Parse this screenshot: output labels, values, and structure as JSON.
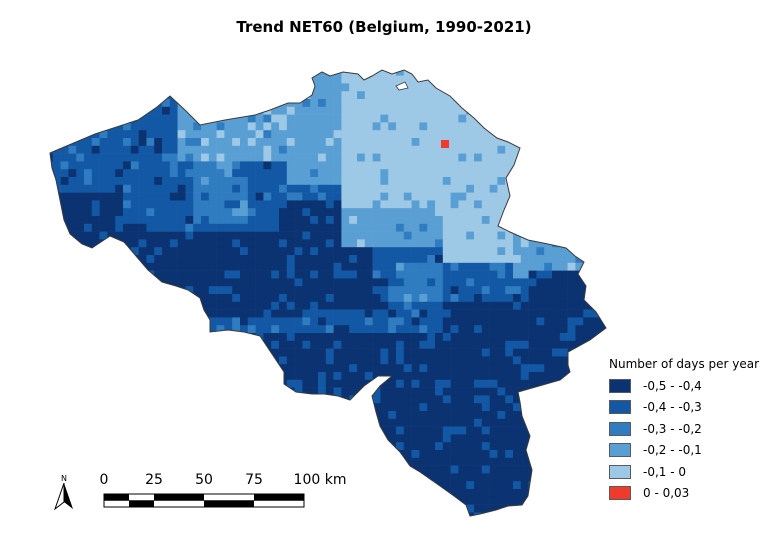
{
  "title": "Trend NET60 (Belgium, 1990-2021)",
  "legend": {
    "title": "Number of days per year",
    "items": [
      {
        "label": "-0,5 - -0,4",
        "color": "#0b3271"
      },
      {
        "label": "-0,4 - -0,3",
        "color": "#1358a4"
      },
      {
        "label": "-0,3 - -0,2",
        "color": "#2f7cc0"
      },
      {
        "label": "-0,2 - -0,1",
        "color": "#5a9fd4"
      },
      {
        "label": "-0,1 - 0",
        "color": "#9dc8e6"
      },
      {
        "label": "0 - 0,03",
        "color": "#ef3b2c"
      }
    ]
  },
  "north_arrow": {
    "label": "N",
    "icon": "north-arrow-icon"
  },
  "scale_bar": {
    "ticks": [
      "0",
      "25",
      "50",
      "75",
      "100 km"
    ]
  }
}
